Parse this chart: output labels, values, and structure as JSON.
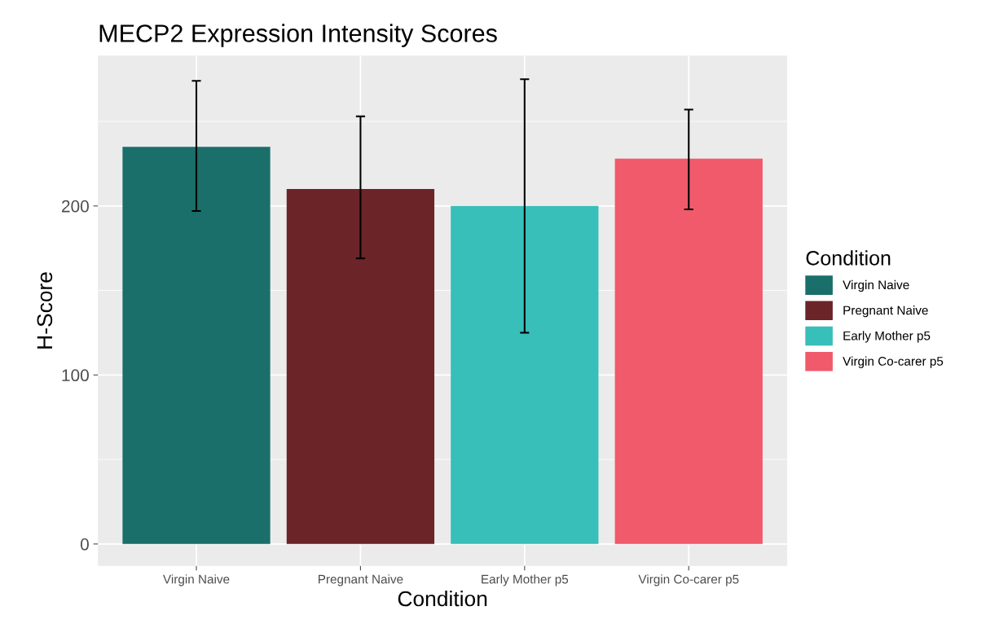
{
  "chart_data": {
    "type": "bar",
    "title": "MECP2 Expression Intensity Scores",
    "xlabel": "Condition",
    "ylabel": "H-Score",
    "legend_title": "Condition",
    "categories": [
      "Virgin Naive",
      "Pregnant Naive",
      "Early Mother p5",
      "Virgin Co-carer p5"
    ],
    "series": [
      {
        "name": "Virgin Naive",
        "color": "#1b6f6a",
        "values": [
          235,
          null,
          null,
          null
        ],
        "errors": [
          [
            197,
            274
          ],
          null,
          null,
          null
        ]
      },
      {
        "name": "Pregnant Naive",
        "color": "#6b2428",
        "values": [
          null,
          210,
          null,
          null
        ],
        "errors": [
          null,
          [
            169,
            253
          ],
          null,
          null
        ]
      },
      {
        "name": "Early Mother p5",
        "color": "#38bfb9",
        "values": [
          null,
          null,
          200,
          null
        ],
        "errors": [
          null,
          null,
          [
            125,
            275
          ],
          null
        ]
      },
      {
        "name": "Virgin Co-carer p5",
        "color": "#f05a6a",
        "values": [
          null,
          null,
          null,
          228
        ],
        "errors": [
          null,
          null,
          null,
          [
            198,
            257
          ]
        ]
      }
    ],
    "ylim": [
      -13,
      289
    ],
    "yticks": [
      0,
      100,
      200
    ],
    "grid": true,
    "legend": "right"
  }
}
